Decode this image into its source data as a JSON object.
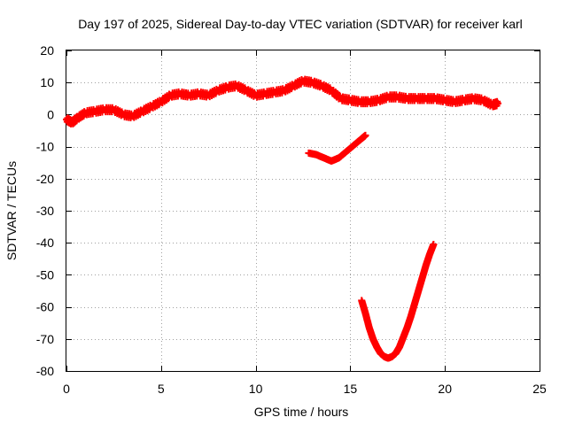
{
  "chart_data": {
    "type": "scatter",
    "title": "Day 197 of 2025, Sidereal Day-to-day VTEC variation (SDTVAR) for receiver karl",
    "xlabel": "GPS time / hours",
    "ylabel": "SDTVAR / TECUs",
    "xlim": [
      0,
      25
    ],
    "ylim": [
      -80,
      20
    ],
    "xticks": [
      0,
      5,
      10,
      15,
      20,
      25
    ],
    "yticks": [
      -80,
      -70,
      -60,
      -50,
      -40,
      -30,
      -20,
      -10,
      0,
      10,
      20
    ],
    "xtick_labels": [
      "0",
      "5",
      "10",
      "15",
      "20",
      "25"
    ],
    "ytick_labels": [
      "-80",
      "-70",
      "-60",
      "-50",
      "-40",
      "-30",
      "-20",
      "-10",
      "0",
      "10",
      "20"
    ],
    "grid": true,
    "marker": "+",
    "series_color": "#ff0000",
    "series": [
      {
        "name": "main-trace",
        "points": [
          [
            0.0,
            -1.5
          ],
          [
            0.3,
            -2.5
          ],
          [
            0.6,
            -1.0
          ],
          [
            1.0,
            0.5
          ],
          [
            1.5,
            1.0
          ],
          [
            2.0,
            1.5
          ],
          [
            2.5,
            1.5
          ],
          [
            3.0,
            0.0
          ],
          [
            3.5,
            -0.5
          ],
          [
            4.0,
            1.0
          ],
          [
            4.5,
            2.5
          ],
          [
            5.0,
            4.0
          ],
          [
            5.5,
            6.0
          ],
          [
            6.0,
            6.5
          ],
          [
            6.5,
            6.0
          ],
          [
            7.0,
            6.5
          ],
          [
            7.5,
            6.0
          ],
          [
            8.0,
            7.5
          ],
          [
            8.5,
            8.5
          ],
          [
            9.0,
            9.0
          ],
          [
            9.5,
            7.5
          ],
          [
            10.0,
            6.0
          ],
          [
            10.5,
            6.5
          ],
          [
            11.0,
            7.0
          ],
          [
            11.5,
            7.5
          ],
          [
            12.0,
            9.0
          ],
          [
            12.5,
            10.5
          ],
          [
            13.0,
            10.0
          ],
          [
            13.5,
            9.0
          ],
          [
            14.0,
            7.5
          ],
          [
            14.5,
            5.0
          ],
          [
            15.0,
            4.5
          ],
          [
            15.5,
            4.0
          ],
          [
            16.0,
            4.0
          ],
          [
            16.5,
            4.5
          ],
          [
            17.0,
            5.5
          ],
          [
            17.5,
            5.5
          ],
          [
            18.0,
            5.0
          ],
          [
            18.5,
            5.0
          ],
          [
            19.0,
            5.0
          ],
          [
            19.5,
            5.0
          ],
          [
            20.0,
            4.5
          ],
          [
            20.5,
            4.0
          ],
          [
            21.0,
            4.5
          ],
          [
            21.5,
            5.0
          ],
          [
            22.0,
            4.5
          ],
          [
            22.5,
            3.0
          ],
          [
            22.8,
            3.5
          ]
        ]
      },
      {
        "name": "arc-trace",
        "points": [
          [
            12.8,
            -12.0
          ],
          [
            13.2,
            -12.5
          ],
          [
            13.6,
            -13.5
          ],
          [
            14.0,
            -14.5
          ],
          [
            14.4,
            -13.5
          ],
          [
            14.8,
            -11.5
          ],
          [
            15.2,
            -9.5
          ],
          [
            15.6,
            -7.5
          ],
          [
            15.8,
            -6.5
          ]
        ]
      },
      {
        "name": "u-trace",
        "points": [
          [
            15.6,
            -58.0
          ],
          [
            15.8,
            -62.0
          ],
          [
            16.0,
            -66.5
          ],
          [
            16.2,
            -70.0
          ],
          [
            16.4,
            -72.5
          ],
          [
            16.6,
            -74.5
          ],
          [
            16.8,
            -75.5
          ],
          [
            17.0,
            -76.0
          ],
          [
            17.2,
            -75.5
          ],
          [
            17.4,
            -74.5
          ],
          [
            17.6,
            -72.5
          ],
          [
            17.8,
            -69.5
          ],
          [
            18.0,
            -66.5
          ],
          [
            18.2,
            -63.0
          ],
          [
            18.4,
            -59.0
          ],
          [
            18.6,
            -55.0
          ],
          [
            18.8,
            -51.0
          ],
          [
            19.0,
            -47.0
          ],
          [
            19.2,
            -43.5
          ],
          [
            19.4,
            -40.5
          ]
        ]
      }
    ]
  }
}
